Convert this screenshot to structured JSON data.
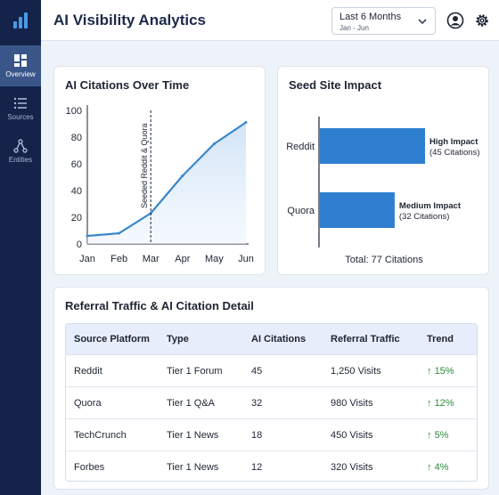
{
  "app": {
    "title": "AI Visibility Analytics"
  },
  "sidebar": {
    "items": [
      {
        "label": "Overview",
        "icon": "dashboard-icon",
        "active": true
      },
      {
        "label": "Sources",
        "icon": "list-icon",
        "active": false
      },
      {
        "label": "Entities",
        "icon": "network-icon",
        "active": false
      }
    ]
  },
  "header": {
    "date_range": {
      "label": "Last 6 Months",
      "sub": "Jan - Jun"
    },
    "icons": [
      "user-icon",
      "gear-icon"
    ]
  },
  "citations_chart": {
    "title": "AI Citations Over Time",
    "annotation": "Seeded Reddit & Quora"
  },
  "seed_chart": {
    "title": "Seed Site Impact",
    "total": "Total: 77 Citations"
  },
  "chart_data": [
    {
      "type": "line",
      "title": "AI Citations Over Time",
      "x": [
        "Jan",
        "Feb",
        "Mar",
        "Apr",
        "May",
        "Jun"
      ],
      "y": [
        6,
        8,
        23,
        51,
        75,
        91
      ],
      "ylim": [
        0,
        100
      ],
      "yticks": [
        "0",
        "20",
        "40",
        "60",
        "80",
        "100"
      ],
      "annotation": {
        "at": "Mar",
        "text": "Seeded Reddit & Quora"
      },
      "color": "#3a87c8"
    },
    {
      "type": "bar",
      "orientation": "horizontal",
      "title": "Seed Site Impact",
      "categories": [
        "Reddit",
        "Quora"
      ],
      "values": [
        45,
        32
      ],
      "labels": [
        {
          "impact": "High Impact",
          "detail": "(45 Citations)"
        },
        {
          "impact": "Medium Impact",
          "detail": "(32 Citations)"
        }
      ],
      "total": "Total: 77 Citations",
      "color": "#2f7fd0"
    }
  ],
  "table": {
    "title": "Referral Traffic & AI Citation Detail",
    "headers": [
      "Source Platform",
      "Type",
      "AI Citations",
      "Referral Traffic",
      "Trend"
    ],
    "rows": [
      {
        "platform": "Reddit",
        "type": "Tier 1 Forum",
        "citations": "45",
        "traffic": "1,250 Visits",
        "trend": "15%"
      },
      {
        "platform": "Quora",
        "type": "Tier 1 Q&A",
        "citations": "32",
        "traffic": "980 Visits",
        "trend": "12%"
      },
      {
        "platform": "TechCrunch",
        "type": "Tier 1 News",
        "citations": "18",
        "traffic": "450 Visits",
        "trend": "5%"
      },
      {
        "platform": "Forbes",
        "type": "Tier 1 News",
        "citations": "12",
        "traffic": "320 Visits",
        "trend": "4%"
      }
    ]
  },
  "colors": {
    "sidebar": "#13234a",
    "accent": "#2f7fd0",
    "positive": "#2e8b3e"
  }
}
